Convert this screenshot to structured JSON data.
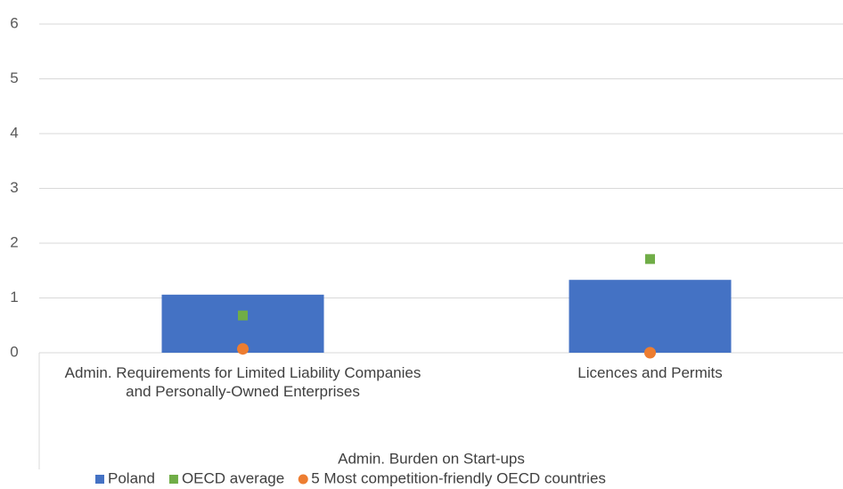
{
  "chart_data": {
    "type": "bar",
    "categories": [
      "Admin. Requirements for Limited Liability Companies and Personally-Owned Enterprises",
      "Licences and Permits"
    ],
    "x_group_label": "Admin. Burden  on Start-ups",
    "series": [
      {
        "name": "Poland",
        "color": "#4472c4",
        "marker": "bar",
        "values": [
          1.06,
          1.33
        ]
      },
      {
        "name": "OECD average",
        "color": "#70ad47",
        "marker": "square",
        "values": [
          0.68,
          1.71
        ]
      },
      {
        "name": "5 Most competition-friendly OECD countries",
        "color": "#ed7d31",
        "marker": "circle",
        "values": [
          0.07,
          0.0
        ]
      }
    ],
    "ylim": [
      0,
      6
    ],
    "yticks": [
      0,
      1,
      2,
      3,
      4,
      5,
      6
    ],
    "grid": true,
    "legend": "bottom"
  }
}
